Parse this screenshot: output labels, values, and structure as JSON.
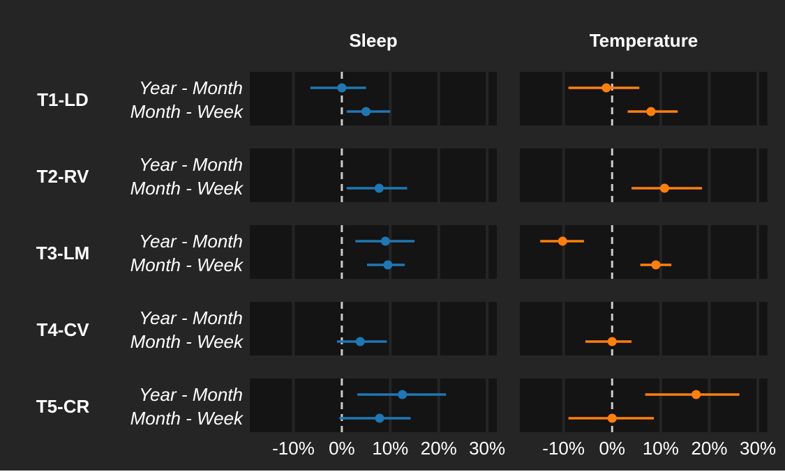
{
  "panels": [
    "Sleep",
    "Temperature"
  ],
  "groups": [
    "T1-LD",
    "T2-RV",
    "T3-LM",
    "T4-CV",
    "T5-CR"
  ],
  "row_labels": [
    "Year - Month",
    "Month - Week"
  ],
  "x_ticks": [
    "-10%",
    "0%",
    "10%",
    "20%",
    "30%"
  ],
  "colors": {
    "background": "#252525",
    "panel": "#141414",
    "grid": "#252525",
    "zero_line": "#cccccc",
    "text": "#ffffff",
    "sleep": "#1f77b4",
    "temperature": "#ff7f0e"
  },
  "chart_data": {
    "type": "forest",
    "xlim": [
      -19,
      32
    ],
    "x_tick_values": [
      -10,
      0,
      10,
      20,
      30
    ],
    "x_unit": "%",
    "series": [
      {
        "name": "Sleep",
        "color": "#1f77b4",
        "points": [
          {
            "group": "T1-LD",
            "row": "Year - Month",
            "estimate": 0,
            "low": -6.5,
            "high": 5
          },
          {
            "group": "T1-LD",
            "row": "Month - Week",
            "estimate": 5,
            "low": 1,
            "high": 10
          },
          {
            "group": "T2-RV",
            "row": "Month - Week",
            "estimate": 7.7,
            "low": 1,
            "high": 13.5
          },
          {
            "group": "T3-LM",
            "row": "Year - Month",
            "estimate": 9,
            "low": 2.8,
            "high": 15
          },
          {
            "group": "T3-LM",
            "row": "Month - Week",
            "estimate": 9.5,
            "low": 5.2,
            "high": 13
          },
          {
            "group": "T4-CV",
            "row": "Month - Week",
            "estimate": 3.8,
            "low": -1,
            "high": 9.3
          },
          {
            "group": "T5-CR",
            "row": "Year - Month",
            "estimate": 12.5,
            "low": 3.2,
            "high": 21.5
          },
          {
            "group": "T5-CR",
            "row": "Month - Week",
            "estimate": 7.8,
            "low": -0.5,
            "high": 14.2
          }
        ]
      },
      {
        "name": "Temperature",
        "color": "#ff7f0e",
        "points": [
          {
            "group": "T1-LD",
            "row": "Year - Month",
            "estimate": -1.2,
            "low": -9,
            "high": 5.6
          },
          {
            "group": "T1-LD",
            "row": "Month - Week",
            "estimate": 8,
            "low": 3.2,
            "high": 13.5
          },
          {
            "group": "T2-RV",
            "row": "Month - Week",
            "estimate": 10.8,
            "low": 4,
            "high": 18.5
          },
          {
            "group": "T3-LM",
            "row": "Year - Month",
            "estimate": -10.2,
            "low": -14.8,
            "high": -5.8
          },
          {
            "group": "T3-LM",
            "row": "Month - Week",
            "estimate": 9,
            "low": 5.8,
            "high": 12.2
          },
          {
            "group": "T4-CV",
            "row": "Month - Week",
            "estimate": 0,
            "low": -5.5,
            "high": 4
          },
          {
            "group": "T5-CR",
            "row": "Year - Month",
            "estimate": 17.3,
            "low": 6.8,
            "high": 26.2
          },
          {
            "group": "T5-CR",
            "row": "Month - Week",
            "estimate": 0,
            "low": -9,
            "high": 8.6
          }
        ]
      }
    ]
  }
}
